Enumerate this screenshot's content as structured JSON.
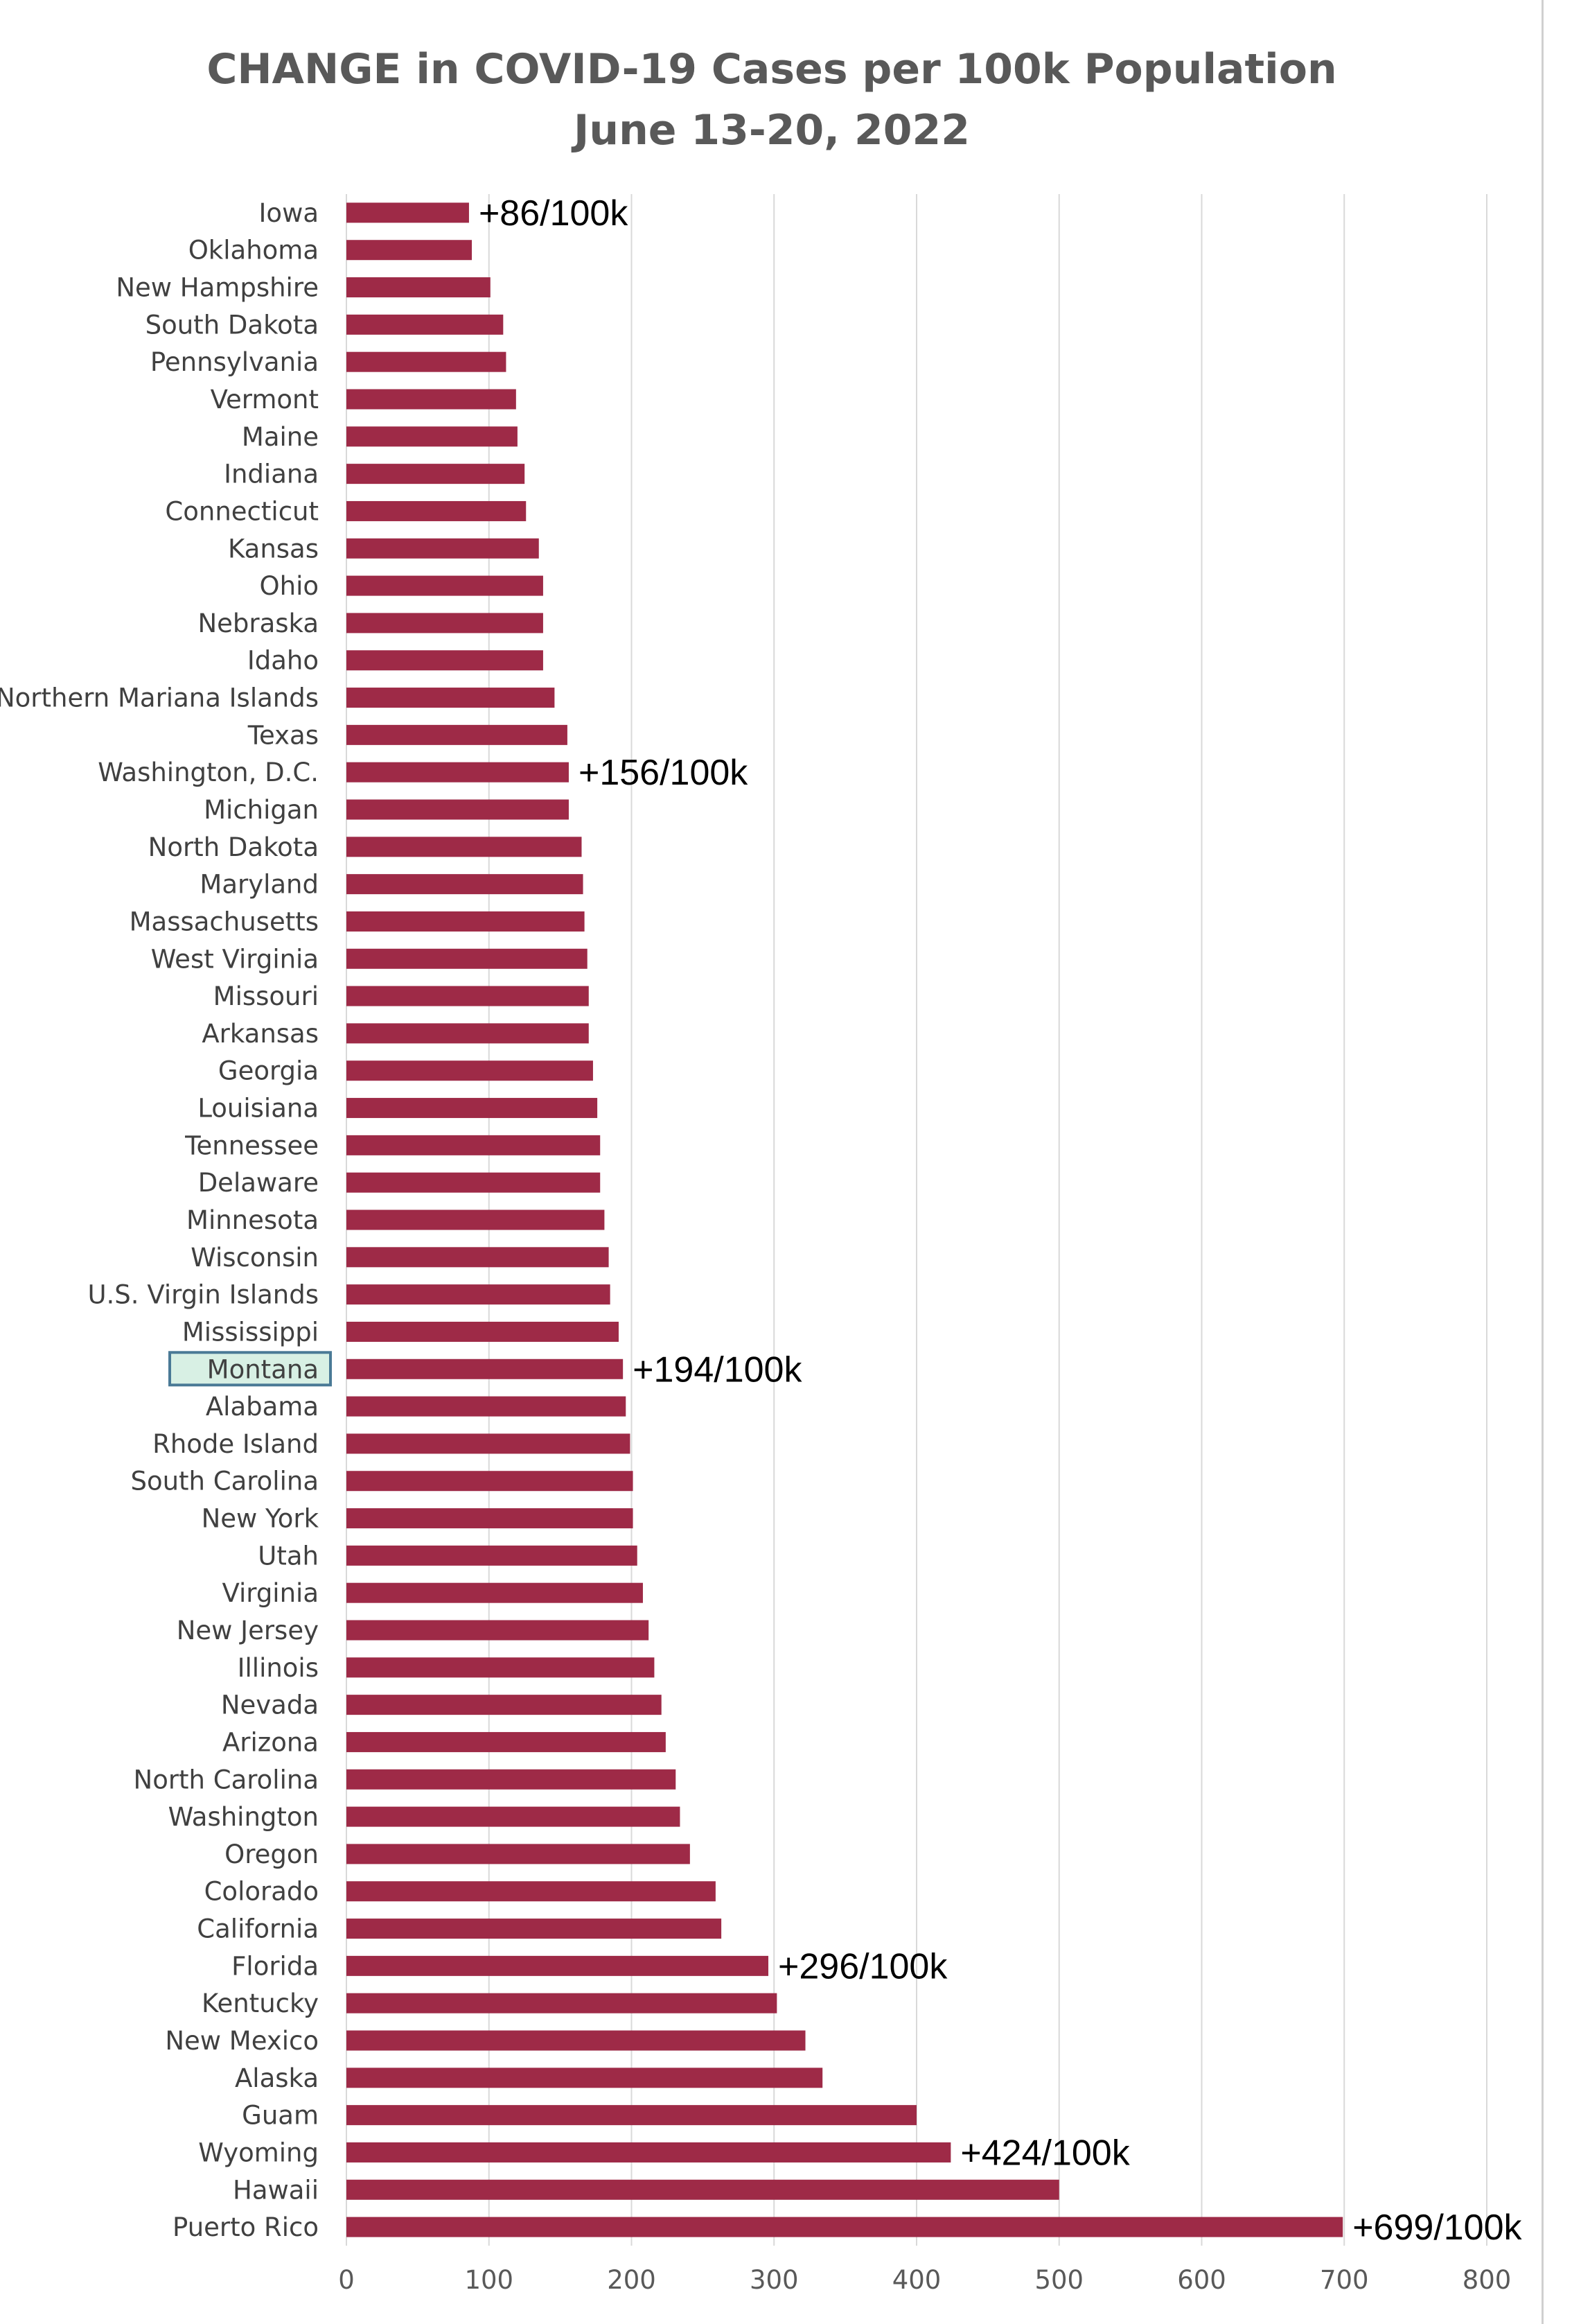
{
  "chart_data": {
    "type": "bar",
    "orientation": "horizontal",
    "title": "CHANGE in COVID-19 Cases per 100k Population",
    "subtitle": "June 13-20, 2022",
    "bar_color": "#9e2a47",
    "grid": true,
    "xlim": [
      0,
      800
    ],
    "xticks": [
      "0",
      "100",
      "200",
      "300",
      "400",
      "500",
      "600",
      "700",
      "800"
    ],
    "highlighted_category": "Montana",
    "highlight_fill": "#d8f0e4",
    "highlight_border": "#4a7a96",
    "categories": [
      "Iowa",
      "Oklahoma",
      "New Hampshire",
      "South Dakota",
      "Pennsylvania",
      "Vermont",
      "Maine",
      "Indiana",
      "Connecticut",
      "Kansas",
      "Ohio",
      "Nebraska",
      "Idaho",
      "Northern Mariana Islands",
      "Texas",
      "Washington, D.C.",
      "Michigan",
      "North Dakota",
      "Maryland",
      "Massachusetts",
      "West Virginia",
      "Missouri",
      "Arkansas",
      "Georgia",
      "Louisiana",
      "Tennessee",
      "Delaware",
      "Minnesota",
      "Wisconsin",
      "U.S. Virgin Islands",
      "Mississippi",
      "Montana",
      "Alabama",
      "Rhode Island",
      "South Carolina",
      "New York",
      "Utah",
      "Virginia",
      "New Jersey",
      "Illinois",
      "Nevada",
      "Arizona",
      "North Carolina",
      "Washington",
      "Oregon",
      "Colorado",
      "California",
      "Florida",
      "Kentucky",
      "New Mexico",
      "Alaska",
      "Guam",
      "Wyoming",
      "Hawaii",
      "Puerto Rico"
    ],
    "values": [
      86,
      88,
      101,
      110,
      112,
      119,
      120,
      125,
      126,
      135,
      138,
      138,
      138,
      146,
      155,
      156,
      156,
      165,
      166,
      167,
      169,
      170,
      170,
      173,
      176,
      178,
      178,
      181,
      184,
      185,
      191,
      194,
      196,
      199,
      201,
      201,
      204,
      208,
      212,
      216,
      221,
      224,
      231,
      234,
      241,
      259,
      263,
      296,
      302,
      322,
      334,
      400,
      424,
      500,
      699
    ],
    "data_labels": [
      {
        "category": "Iowa",
        "text": "+86/100k"
      },
      {
        "category": "Washington, D.C.",
        "text": "+156/100k"
      },
      {
        "category": "Montana",
        "text": "+194/100k"
      },
      {
        "category": "Florida",
        "text": "+296/100k"
      },
      {
        "category": "Wyoming",
        "text": "+424/100k"
      },
      {
        "category": "Puerto Rico",
        "text": "+699/100k"
      }
    ]
  }
}
